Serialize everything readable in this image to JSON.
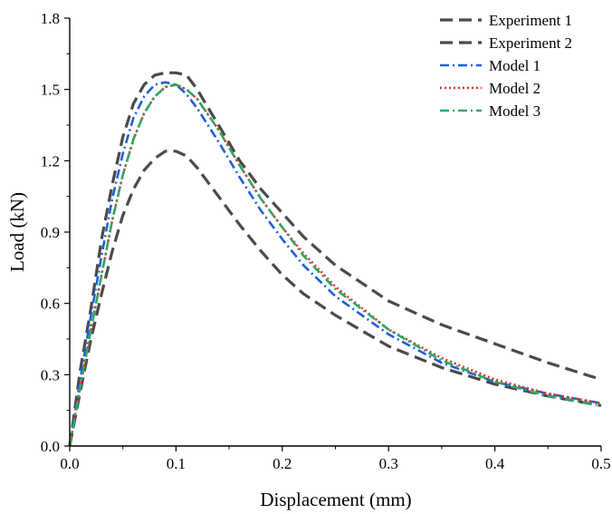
{
  "chart_data": {
    "type": "line",
    "xlabel": "Displacement (mm)",
    "ylabel": "Load (kN)",
    "xlim": [
      0.0,
      0.5
    ],
    "ylim": [
      0.0,
      1.8
    ],
    "xticks": [
      0.0,
      0.1,
      0.2,
      0.3,
      0.4,
      0.5
    ],
    "xtick_labels": [
      "0.0",
      "0.1",
      "0.2",
      "0.3",
      "0.4",
      "0.5"
    ],
    "yticks": [
      0.0,
      0.3,
      0.6,
      0.9,
      1.2,
      1.5,
      1.8
    ],
    "ytick_labels": [
      "0.0",
      "0.3",
      "0.6",
      "0.9",
      "1.2",
      "1.5",
      "1.8"
    ],
    "grid": false,
    "legend_position": "top-right",
    "series": [
      {
        "name": "Experiment 1",
        "color": "#4a4a4a",
        "style": "dashed",
        "x": [
          0.0,
          0.01,
          0.02,
          0.03,
          0.04,
          0.05,
          0.06,
          0.07,
          0.08,
          0.09,
          0.1,
          0.11,
          0.12,
          0.14,
          0.16,
          0.18,
          0.2,
          0.22,
          0.25,
          0.3,
          0.35,
          0.4,
          0.45,
          0.5
        ],
        "y": [
          0.0,
          0.32,
          0.58,
          0.87,
          1.1,
          1.3,
          1.44,
          1.52,
          1.56,
          1.57,
          1.57,
          1.56,
          1.5,
          1.35,
          1.2,
          1.08,
          0.98,
          0.88,
          0.76,
          0.61,
          0.51,
          0.43,
          0.35,
          0.28
        ]
      },
      {
        "name": "Experiment 2",
        "color": "#4a4a4a",
        "style": "dashed",
        "x": [
          0.0,
          0.01,
          0.02,
          0.03,
          0.04,
          0.05,
          0.06,
          0.07,
          0.08,
          0.09,
          0.1,
          0.11,
          0.12,
          0.14,
          0.16,
          0.18,
          0.2,
          0.22,
          0.25,
          0.3,
          0.35,
          0.4,
          0.45,
          0.5
        ],
        "y": [
          0.0,
          0.23,
          0.45,
          0.64,
          0.82,
          0.97,
          1.08,
          1.16,
          1.21,
          1.24,
          1.24,
          1.22,
          1.17,
          1.05,
          0.93,
          0.82,
          0.72,
          0.64,
          0.55,
          0.42,
          0.33,
          0.26,
          0.21,
          0.17
        ]
      },
      {
        "name": "Model 1",
        "color": "#1f5fd6",
        "style": "dashdot",
        "x": [
          0.0,
          0.01,
          0.02,
          0.03,
          0.04,
          0.05,
          0.06,
          0.07,
          0.08,
          0.09,
          0.1,
          0.11,
          0.12,
          0.14,
          0.16,
          0.18,
          0.2,
          0.22,
          0.25,
          0.3,
          0.35,
          0.4,
          0.45,
          0.5
        ],
        "y": [
          0.0,
          0.28,
          0.55,
          0.8,
          1.04,
          1.23,
          1.38,
          1.47,
          1.52,
          1.53,
          1.52,
          1.48,
          1.42,
          1.28,
          1.13,
          0.99,
          0.87,
          0.76,
          0.63,
          0.47,
          0.35,
          0.27,
          0.22,
          0.18
        ]
      },
      {
        "name": "Model 2",
        "color": "#e53030",
        "style": "dotted",
        "x": [
          0.0,
          0.01,
          0.02,
          0.03,
          0.04,
          0.05,
          0.06,
          0.07,
          0.08,
          0.09,
          0.1,
          0.11,
          0.12,
          0.14,
          0.16,
          0.18,
          0.2,
          0.22,
          0.25,
          0.3,
          0.35,
          0.4,
          0.45,
          0.5
        ],
        "y": [
          0.0,
          0.25,
          0.49,
          0.72,
          0.95,
          1.14,
          1.29,
          1.4,
          1.47,
          1.51,
          1.52,
          1.5,
          1.46,
          1.33,
          1.18,
          1.04,
          0.92,
          0.81,
          0.67,
          0.49,
          0.37,
          0.28,
          0.22,
          0.18
        ]
      },
      {
        "name": "Model 3",
        "color": "#2ea860",
        "style": "dashdot",
        "x": [
          0.0,
          0.01,
          0.02,
          0.03,
          0.04,
          0.05,
          0.06,
          0.07,
          0.08,
          0.09,
          0.1,
          0.11,
          0.12,
          0.14,
          0.16,
          0.18,
          0.2,
          0.22,
          0.25,
          0.3,
          0.35,
          0.4,
          0.45,
          0.5
        ],
        "y": [
          0.0,
          0.25,
          0.49,
          0.72,
          0.95,
          1.14,
          1.29,
          1.4,
          1.47,
          1.51,
          1.52,
          1.5,
          1.46,
          1.33,
          1.18,
          1.04,
          0.92,
          0.8,
          0.66,
          0.49,
          0.36,
          0.27,
          0.21,
          0.17
        ]
      }
    ]
  }
}
